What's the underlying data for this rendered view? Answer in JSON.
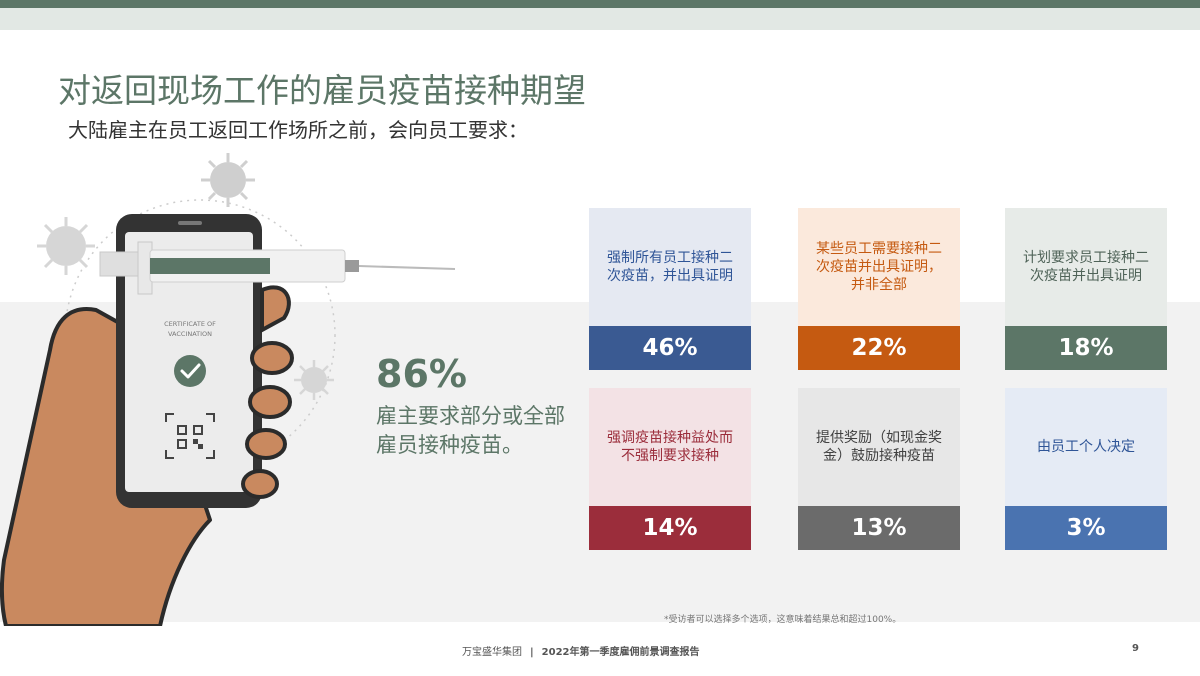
{
  "title": "对返回现场工作的雇员疫苗接种期望",
  "subtitle": "大陆雇主在员工返回工作场所之前，会向员工要求：",
  "certificate": {
    "line1": "CERTIFICATE OF",
    "line2": "VACCINATION"
  },
  "highlight": {
    "percent": "86%",
    "description": "雇主要求部分或全部雇员接种疫苗。"
  },
  "cards": [
    {
      "label": "强制所有员工接种二次疫苗，并出具证明",
      "value": "46%",
      "label_color": "#2f5597",
      "label_bg": "#e5e9f2",
      "value_bg": "#3a5a92"
    },
    {
      "label": "某些员工需要接种二次疫苗并出具证明，并非全部",
      "value": "22%",
      "label_color": "#c55a11",
      "label_bg": "#fbe9dc",
      "value_bg": "#c55a11"
    },
    {
      "label": "计划要求员工接种二次疫苗并出具证明",
      "value": "18%",
      "label_color": "#4f6358",
      "label_bg": "#e7ebe8",
      "value_bg": "#5c7667"
    },
    {
      "label": "强调疫苗接种益处而不强制要求接种",
      "value": "14%",
      "label_color": "#9b2d3b",
      "label_bg": "#f3e2e5",
      "value_bg": "#9b2d3b"
    },
    {
      "label": "提供奖励（如现金奖金）鼓励接种疫苗",
      "value": "13%",
      "label_color": "#404040",
      "label_bg": "#e7e7e7",
      "value_bg": "#6b6b6b"
    },
    {
      "label": "由员工个人决定",
      "value": "3%",
      "label_color": "#2f5597",
      "label_bg": "#e5ebf5",
      "value_bg": "#4a73b0"
    }
  ],
  "footnote": "*受访者可以选择多个选项，这意味着结果总和超过100%。",
  "footer": {
    "company": "万宝盛华集团",
    "separator": "|",
    "report": "2022年第一季度雇佣前景调查报告"
  },
  "page_number": "9"
}
